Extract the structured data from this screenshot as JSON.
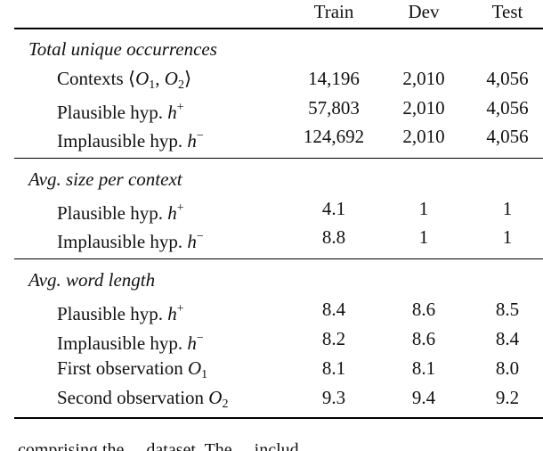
{
  "columns": {
    "train": "Train",
    "dev": "Dev",
    "test": "Test"
  },
  "sections": [
    {
      "title": "Total unique occurrences",
      "rows": [
        {
          "label": "Contexts ⟨O₁, O₂⟩",
          "train": "14,196",
          "dev": "2,010",
          "test": "4,056"
        },
        {
          "label": "Plausible hyp. h⁺",
          "train": "57,803",
          "dev": "2,010",
          "test": "4,056"
        },
        {
          "label": "Implausible hyp. h⁻",
          "train": "124,692",
          "dev": "2,010",
          "test": "4,056"
        }
      ]
    },
    {
      "title": "Avg. size per context",
      "rows": [
        {
          "label": "Plausible hyp. h⁺",
          "train": "4.1",
          "dev": "1",
          "test": "1"
        },
        {
          "label": "Implausible hyp. h⁻",
          "train": "8.8",
          "dev": "1",
          "test": "1"
        }
      ]
    },
    {
      "title": "Avg. word length",
      "rows": [
        {
          "label": "Plausible hyp. h⁺",
          "train": "8.4",
          "dev": "8.6",
          "test": "8.5"
        },
        {
          "label": "Implausible hyp. h⁻",
          "train": "8.2",
          "dev": "8.6",
          "test": "8.4"
        },
        {
          "label": "First observation O₁",
          "train": "8.1",
          "dev": "8.1",
          "test": "8.0"
        },
        {
          "label": "Second observation O₂",
          "train": "9.3",
          "dev": "9.4",
          "test": "9.2"
        }
      ]
    }
  ],
  "trailing_text": "... comprising the ... dataset. The ... includ..."
}
